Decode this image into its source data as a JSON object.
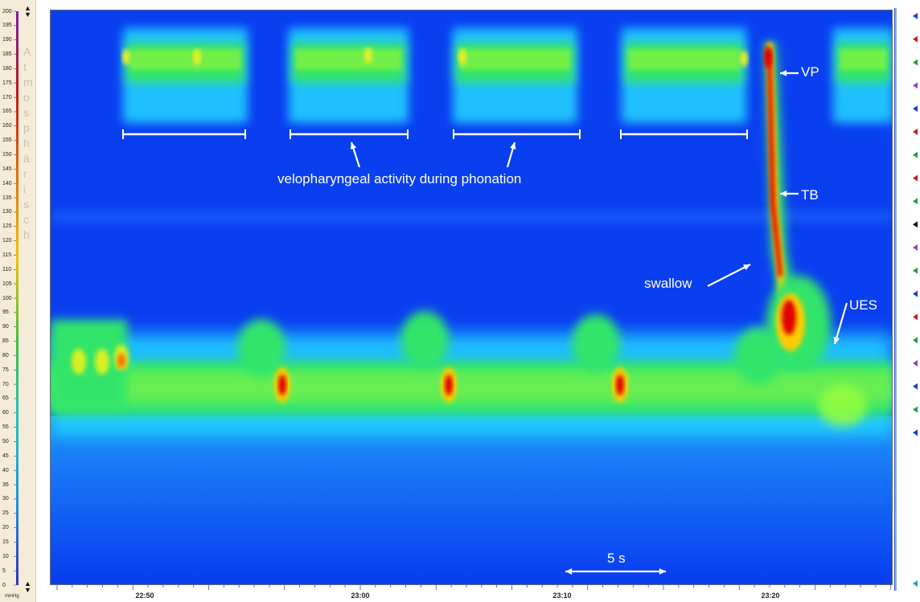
{
  "scale": {
    "unit": "mmHg",
    "vertical_text": "Atmosphärisch",
    "ticks": [
      0,
      5,
      10,
      15,
      20,
      25,
      30,
      35,
      40,
      45,
      50,
      55,
      60,
      65,
      70,
      75,
      80,
      85,
      90,
      95,
      100,
      105,
      110,
      115,
      120,
      125,
      130,
      135,
      140,
      145,
      150,
      155,
      160,
      165,
      170,
      175,
      180,
      185,
      190,
      195,
      200
    ]
  },
  "chart_data": {
    "type": "heatmap",
    "title": "",
    "xlabel": "",
    "ylabel": "",
    "x_ticks": [
      "22:50",
      "23:00",
      "23:10",
      "23:20"
    ],
    "y_range": [
      0,
      200
    ],
    "colorscale": [
      "#0a3ff0",
      "#2fd7ff",
      "#31e56b",
      "#9cff3a",
      "#ffe000",
      "#ff6a00",
      "#e00000"
    ],
    "annotations": {
      "phonation": "velopharyngeal activity during phonation",
      "vp": "VP",
      "tb": "TB",
      "swallow": "swallow",
      "ues": "UES",
      "scale_bar": "5 s"
    }
  },
  "markers": {
    "colors": [
      "#1a3fd0",
      "#c02020",
      "#20a040",
      "#a040c0",
      "#1a3fd0",
      "#c02020",
      "#20a040",
      "#c02020",
      "#20a040",
      "#111111",
      "#a040c0",
      "#20a040",
      "#1a3fd0",
      "#c02020",
      "#20a040",
      "#a040c0",
      "#1a3fd0",
      "#20a040",
      "#1a3fd0"
    ]
  }
}
